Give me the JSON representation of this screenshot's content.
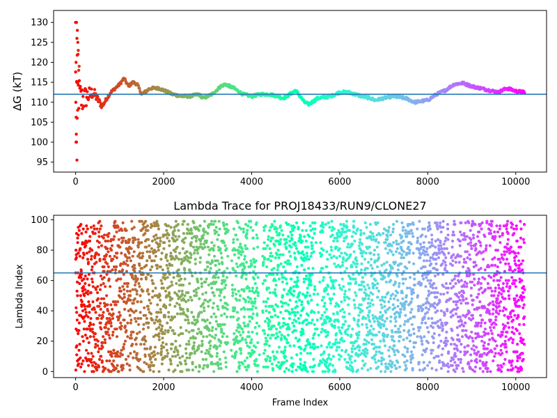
{
  "chart_data": [
    {
      "type": "scatter",
      "title": "",
      "xlabel": "",
      "ylabel": "ΔG (kT)",
      "xlim": [
        -500,
        10700
      ],
      "ylim": [
        92.5,
        133
      ],
      "xticks": [
        0,
        2000,
        4000,
        6000,
        8000,
        10000
      ],
      "yticks": [
        95,
        100,
        105,
        110,
        115,
        120,
        125,
        130
      ],
      "hline": 112.0,
      "hline_color": "#1f77b4",
      "colormap": "rainbow",
      "grid": false,
      "legend": "none",
      "n_frames": 10200,
      "trend": [
        [
          0,
          110
        ],
        [
          200,
          111
        ],
        [
          400,
          112.5
        ],
        [
          600,
          109
        ],
        [
          800,
          112.5
        ],
        [
          1000,
          114.5
        ],
        [
          1100,
          116
        ],
        [
          1200,
          114
        ],
        [
          1300,
          115
        ],
        [
          1400,
          114.5
        ],
        [
          1500,
          112
        ],
        [
          1700,
          113.5
        ],
        [
          1900,
          113.5
        ],
        [
          2000,
          113
        ],
        [
          2200,
          112
        ],
        [
          2400,
          111.5
        ],
        [
          2600,
          111.5
        ],
        [
          2800,
          112
        ],
        [
          2900,
          111
        ],
        [
          3100,
          112
        ],
        [
          3300,
          114
        ],
        [
          3400,
          114.5
        ],
        [
          3600,
          113.5
        ],
        [
          3800,
          112
        ],
        [
          4000,
          111.5
        ],
        [
          4200,
          112
        ],
        [
          4400,
          112
        ],
        [
          4600,
          111.5
        ],
        [
          4700,
          111
        ],
        [
          4800,
          111.5
        ],
        [
          5000,
          113
        ],
        [
          5200,
          110
        ],
        [
          5300,
          109.5
        ],
        [
          5500,
          111
        ],
        [
          5800,
          111.5
        ],
        [
          6000,
          112.5
        ],
        [
          6200,
          112.5
        ],
        [
          6500,
          111.5
        ],
        [
          6700,
          111
        ],
        [
          6800,
          110.5
        ],
        [
          7000,
          111
        ],
        [
          7200,
          111.5
        ],
        [
          7500,
          111
        ],
        [
          7700,
          110
        ],
        [
          8000,
          110.5
        ],
        [
          8200,
          112
        ],
        [
          8400,
          113
        ],
        [
          8600,
          114.5
        ],
        [
          8800,
          114.8
        ],
        [
          9000,
          114
        ],
        [
          9200,
          113.5
        ],
        [
          9400,
          113
        ],
        [
          9600,
          112.5
        ],
        [
          9800,
          113.5
        ],
        [
          10000,
          112.8
        ],
        [
          10200,
          112.5
        ]
      ]
    },
    {
      "type": "scatter",
      "title": "Lambda Trace for PROJ18433/RUN9/CLONE27",
      "xlabel": "Frame Index",
      "ylabel": "Lambda Index",
      "xlim": [
        -500,
        10700
      ],
      "ylim": [
        -4,
        103
      ],
      "xticks": [
        0,
        2000,
        4000,
        6000,
        8000,
        10000
      ],
      "yticks": [
        0,
        20,
        40,
        60,
        80,
        100
      ],
      "hline": 65,
      "hline_color": "#1f77b4",
      "colormap": "rainbow",
      "grid": false,
      "legend": "none",
      "n_frames": 10200,
      "y_range": [
        0,
        99
      ]
    }
  ]
}
